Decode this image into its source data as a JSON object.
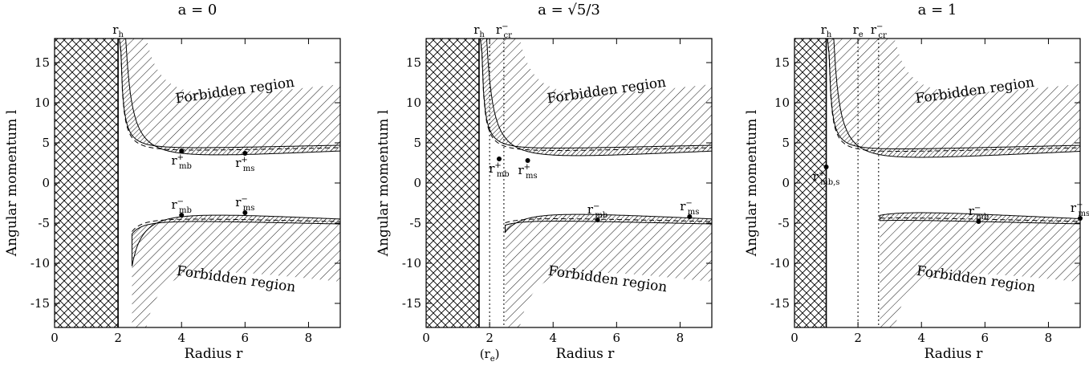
{
  "figure": {
    "xlabel": "Radius r",
    "ylabel": "Angular momentum l",
    "forbidden_label": "Forbidden region",
    "xtick_labels": [
      "0",
      "2",
      "4",
      "6",
      "8"
    ],
    "ytick_labels": [
      "-15",
      "-10",
      "-5",
      "0",
      "5",
      "10",
      "15"
    ]
  },
  "chart_data": [
    {
      "type": "area",
      "title": "a = 0",
      "xlim": [
        0,
        9
      ],
      "ylim": [
        -18,
        18
      ],
      "spin": 0,
      "top_labels": [
        {
          "text": "r",
          "sub": "h",
          "sup": "",
          "x": 2.0
        }
      ],
      "vertical_lines": [],
      "bottom_extra_label": "",
      "points": [
        {
          "x": 4.0,
          "y": 4.0,
          "label": "r",
          "sup": "+",
          "sub": "mb"
        },
        {
          "x": 6.0,
          "y": 3.7,
          "label": "r",
          "sup": "+",
          "sub": "ms"
        },
        {
          "x": 4.0,
          "y": -4.0,
          "label": "r",
          "sup": "−",
          "sub": "mb"
        },
        {
          "x": 6.0,
          "y": -3.7,
          "label": "r",
          "sup": "−",
          "sub": "ms"
        }
      ],
      "grid": false
    },
    {
      "type": "area",
      "title": "a = √5/3",
      "xlim": [
        0,
        9
      ],
      "ylim": [
        -18,
        18
      ],
      "spin": 0.745,
      "top_labels": [
        {
          "text": "r",
          "sub": "h",
          "sup": "",
          "x": 1.67
        },
        {
          "text": "r",
          "sub": "cr",
          "sup": "−",
          "x": 2.45
        }
      ],
      "vertical_lines": [
        2.0,
        2.45
      ],
      "bottom_extra_label": "(r",
      "bottom_extra_sub": "e",
      "bottom_extra_close": ")",
      "points": [
        {
          "x": 2.3,
          "y": 3.0,
          "label": "r",
          "sup": "+",
          "sub": "mb"
        },
        {
          "x": 3.2,
          "y": 2.8,
          "label": "r",
          "sup": "+",
          "sub": "ms"
        },
        {
          "x": 5.4,
          "y": -4.6,
          "label": "r",
          "sup": "−",
          "sub": "mb"
        },
        {
          "x": 8.3,
          "y": -4.2,
          "label": "r",
          "sup": "−",
          "sub": "ms"
        }
      ],
      "grid": false
    },
    {
      "type": "area",
      "title": "a = 1",
      "xlim": [
        0,
        9
      ],
      "ylim": [
        -18,
        18
      ],
      "spin": 1.0,
      "top_labels": [
        {
          "text": "r",
          "sub": "h",
          "sup": "",
          "x": 1.0
        },
        {
          "text": "r",
          "sub": "e",
          "sup": "",
          "x": 2.0
        },
        {
          "text": "r",
          "sub": "cr",
          "sup": "−",
          "x": 2.65
        }
      ],
      "vertical_lines": [
        2.0,
        2.65
      ],
      "bottom_extra_label": "",
      "points": [
        {
          "x": 1.0,
          "y": 2.0,
          "label": "r",
          "sup": "+",
          "sub": "mb,s"
        },
        {
          "x": 5.8,
          "y": -4.8,
          "label": "r",
          "sup": "−",
          "sub": "mb"
        },
        {
          "x": 9.0,
          "y": -4.4,
          "label": "r",
          "sup": "−",
          "sub": "ms"
        }
      ],
      "grid": false
    }
  ]
}
